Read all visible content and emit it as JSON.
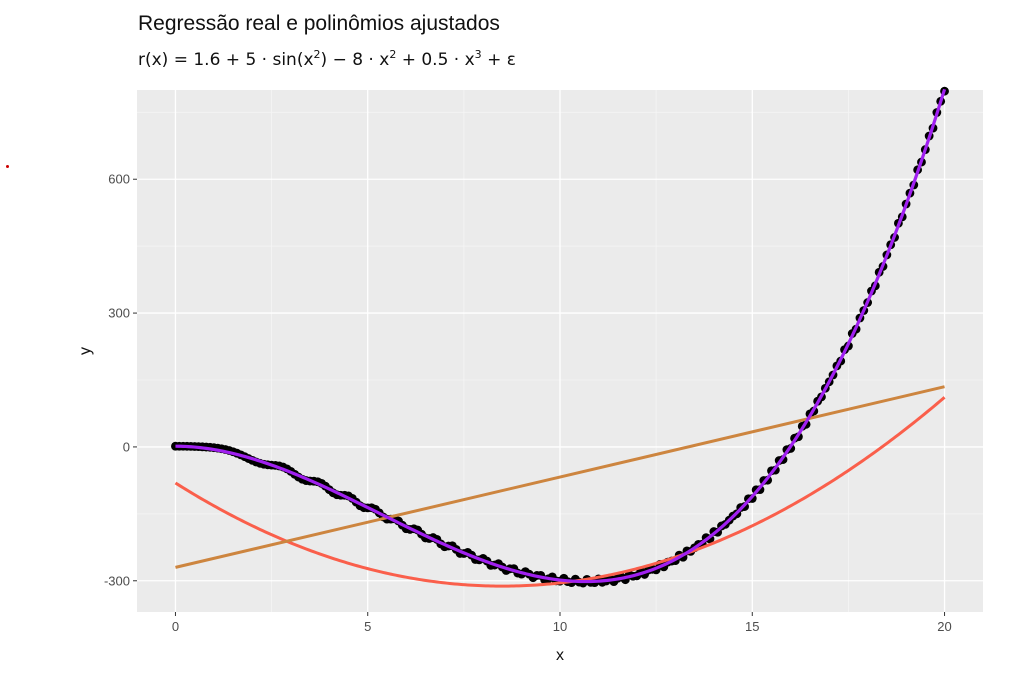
{
  "title": "Regressão real e polinômios ajustados",
  "subtitle": {
    "lhs": "r(x) = 1.6 + 5 · sin(x",
    "sup1": "2",
    "mid1": ") − 8 · x",
    "sup2": "2",
    "mid2": " + 0.5 · x",
    "sup3": "3",
    "tail": " + ε"
  },
  "colors": {
    "panel": "#ebebeb",
    "grid_major": "#ffffff",
    "grid_minor": "#f5f5f5",
    "points": "#000000",
    "true_curve": "#a020f0",
    "degree1": "#cd853f",
    "degree2": "#fa5f4b",
    "stray_dot": "#cc0000"
  },
  "chart_data": {
    "type": "line",
    "title": "Regressão real e polinômios ajustados",
    "subtitle": "r(x) = 1.6 + 5 · sin(x²) − 8 · x² + 0.5 · x³ + ε",
    "xlabel": "x",
    "ylabel": "y",
    "xlim": [
      -1,
      21
    ],
    "ylim": [
      -370,
      800
    ],
    "x_ticks": [
      0,
      5,
      10,
      15,
      20
    ],
    "y_ticks": [
      -300,
      0,
      300,
      600
    ],
    "x_tick_labels": [
      "0",
      "5",
      "10",
      "15",
      "20"
    ],
    "y_tick_labels": [
      "-300",
      "0",
      "300",
      "600"
    ],
    "grid": true,
    "legend": "none",
    "series": [
      {
        "kind": "points",
        "color": "#000000",
        "model": "1.6 + 5*sin(x^2) - 8*x^2 + 0.5*x^3",
        "x": [
          0,
          0.1,
          0.2,
          0.3,
          0.4,
          0.5,
          0.6,
          0.7,
          0.8,
          0.9,
          1,
          1.1,
          1.2,
          1.3,
          1.4,
          1.5,
          1.6,
          1.7,
          1.8,
          1.9,
          2,
          2.1,
          2.2,
          2.3,
          2.4,
          2.5,
          2.6,
          2.7,
          2.8,
          2.9,
          3,
          3.1,
          3.2,
          3.3,
          3.4,
          3.5,
          3.6,
          3.7,
          3.8,
          3.9,
          4,
          4.1,
          4.2,
          4.3,
          4.4,
          4.5,
          4.6,
          4.7,
          4.8,
          4.9,
          5,
          5.1,
          5.2,
          5.3,
          5.4,
          5.5,
          5.6,
          5.7,
          5.8,
          5.9,
          6,
          6.1,
          6.2,
          6.3,
          6.4,
          6.5,
          6.6,
          6.7,
          6.8,
          6.9,
          7,
          7.1,
          7.2,
          7.3,
          7.4,
          7.5,
          7.6,
          7.7,
          7.8,
          7.9,
          8,
          8.1,
          8.2,
          8.3,
          8.4,
          8.5,
          8.6,
          8.7,
          8.8,
          8.9,
          9,
          9.1,
          9.2,
          9.3,
          9.4,
          9.5,
          9.6,
          9.7,
          9.8,
          9.9,
          10,
          10.1,
          10.2,
          10.3,
          10.4,
          10.5,
          10.6,
          10.7,
          10.8,
          10.9,
          11,
          11.1,
          11.2,
          11.3,
          11.4,
          11.5,
          11.6,
          11.7,
          11.8,
          11.9,
          12,
          12.1,
          12.2,
          12.3,
          12.4,
          12.5,
          12.6,
          12.7,
          12.8,
          12.9,
          13,
          13.1,
          13.2,
          13.3,
          13.4,
          13.5,
          13.6,
          13.7,
          13.8,
          13.9,
          14,
          14.1,
          14.2,
          14.3,
          14.4,
          14.5,
          14.6,
          14.7,
          14.8,
          14.9,
          15,
          15.1,
          15.2,
          15.3,
          15.4,
          15.5,
          15.6,
          15.7,
          15.8,
          15.9,
          16,
          16.1,
          16.2,
          16.3,
          16.4,
          16.5,
          16.6,
          16.7,
          16.8,
          16.9,
          17,
          17.1,
          17.2,
          17.3,
          17.4,
          17.5,
          17.6,
          17.7,
          17.8,
          17.9,
          18,
          18.1,
          18.2,
          18.3,
          18.4,
          18.5,
          18.6,
          18.7,
          18.8,
          18.9,
          19,
          19.1,
          19.2,
          19.3,
          19.4,
          19.5,
          19.6,
          19.7,
          19.8,
          19.9,
          20
        ]
      },
      {
        "kind": "line",
        "color": "#a020f0",
        "model": "1.6 - 8*x^2 + 0.5*x^3",
        "x_range": [
          0,
          20
        ]
      },
      {
        "kind": "line",
        "color": "#cd853f",
        "fit": "degree 1",
        "x": [
          0,
          20
        ],
        "y": [
          -270,
          135
        ]
      },
      {
        "kind": "line",
        "color": "#fa5f4b",
        "fit": "degree 2",
        "model": "3.2*(x-8.5)^2 - 312",
        "x_range": [
          0,
          20
        ]
      }
    ]
  }
}
